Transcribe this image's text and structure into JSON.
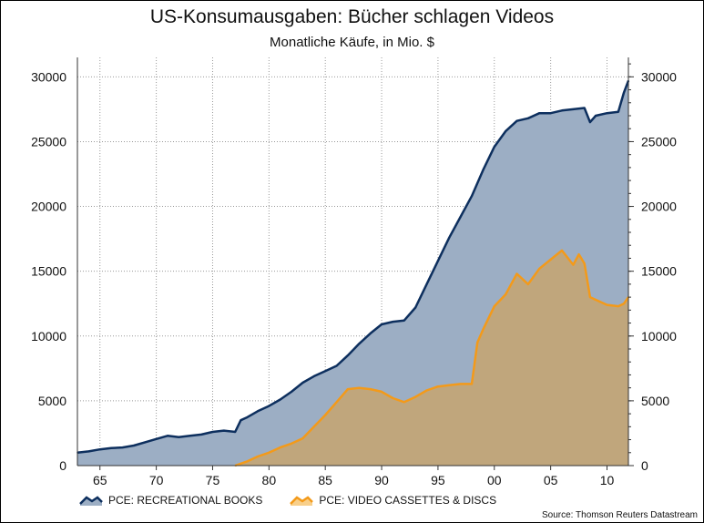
{
  "chart_data": {
    "type": "area",
    "title": "US-Konsumausgaben: Bücher schlagen Videos",
    "subtitle": "Monatliche Käufe, in Mio. $",
    "xlabel": "",
    "ylabel": "",
    "xlim": [
      1963,
      2011.9
    ],
    "ylim": [
      0,
      31500
    ],
    "grid": true,
    "legend_position": "bottom",
    "x_ticks": [
      {
        "v": 1965,
        "label": "65"
      },
      {
        "v": 1970,
        "label": "70"
      },
      {
        "v": 1975,
        "label": "75"
      },
      {
        "v": 1980,
        "label": "80"
      },
      {
        "v": 1985,
        "label": "85"
      },
      {
        "v": 1990,
        "label": "90"
      },
      {
        "v": 1995,
        "label": "95"
      },
      {
        "v": 2000,
        "label": "00"
      },
      {
        "v": 2005,
        "label": "05"
      },
      {
        "v": 2010,
        "label": "10"
      }
    ],
    "y_ticks": [
      0,
      5000,
      10000,
      15000,
      20000,
      25000,
      30000
    ],
    "series": [
      {
        "name": "PCE:  RECREATIONAL BOOKS",
        "color": "#0d2f5e",
        "fill": "#9caec4",
        "x": [
          1963,
          1964,
          1965,
          1966,
          1967,
          1968,
          1969,
          1970,
          1971,
          1972,
          1973,
          1974,
          1975,
          1976,
          1977,
          1977.5,
          1978,
          1979,
          1980,
          1981,
          1982,
          1983,
          1984,
          1985,
          1986,
          1987,
          1988,
          1989,
          1990,
          1991,
          1992,
          1993,
          1994,
          1995,
          1996,
          1997,
          1998,
          1999,
          2000,
          2001,
          2002,
          2003,
          2004,
          2005,
          2006,
          2007,
          2008,
          2008.5,
          2009,
          2010,
          2011,
          2011.5,
          2011.9
        ],
        "values": [
          1000,
          1100,
          1250,
          1350,
          1400,
          1550,
          1800,
          2050,
          2300,
          2200,
          2300,
          2400,
          2600,
          2700,
          2600,
          3500,
          3700,
          4200,
          4600,
          5100,
          5700,
          6400,
          6900,
          7300,
          7700,
          8500,
          9400,
          10200,
          10900,
          11100,
          11200,
          12200,
          14000,
          15800,
          17600,
          19200,
          20800,
          22800,
          24600,
          25800,
          26600,
          26800,
          27200,
          27200,
          27400,
          27500,
          27600,
          26500,
          27000,
          27200,
          27300,
          28800,
          29700
        ]
      },
      {
        "name": "PCE: VIDEO CASSETTES & DISCS",
        "color": "#f39a1a",
        "fill": "#c0a67c",
        "x": [
          1977,
          1978,
          1979,
          1980,
          1981,
          1982,
          1983,
          1984,
          1985,
          1986,
          1987,
          1988,
          1989,
          1990,
          1991,
          1992,
          1993,
          1994,
          1995,
          1996,
          1997,
          1998,
          1998.5,
          1999,
          2000,
          2001,
          2002,
          2003,
          2004,
          2005,
          2006,
          2007,
          2007.5,
          2008,
          2008.5,
          2009,
          2010,
          2011,
          2011.5,
          2011.9
        ],
        "values": [
          0,
          300,
          700,
          1000,
          1400,
          1700,
          2100,
          3000,
          3900,
          4900,
          5900,
          6000,
          5900,
          5700,
          5200,
          4900,
          5300,
          5800,
          6100,
          6200,
          6300,
          6300,
          9500,
          10500,
          12300,
          13200,
          14800,
          14000,
          15200,
          15900,
          16600,
          15500,
          16300,
          15600,
          13000,
          12800,
          12400,
          12300,
          12500,
          13000
        ]
      }
    ],
    "source": "Source: Thomson Reuters Datastream"
  }
}
